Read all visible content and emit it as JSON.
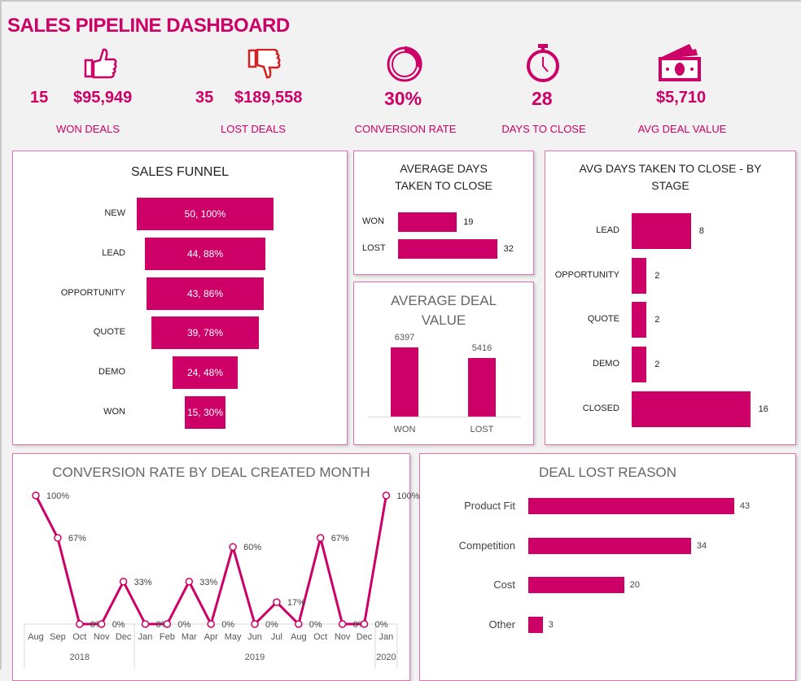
{
  "header": {
    "title": "SALES PIPELINE  DASHBOARD"
  },
  "colors": {
    "accent": "#cc0066",
    "lost_icon": "#d42020",
    "border": "#e272ad"
  },
  "kpis": {
    "won": {
      "count": "15",
      "value": "$95,949",
      "label": "WON DEALS",
      "icon": "thumbs-up-icon"
    },
    "lost": {
      "count": "35",
      "value": "$189,558",
      "label": "LOST DEALS",
      "icon": "thumbs-down-icon"
    },
    "conversion": {
      "value": "30%",
      "label": "CONVERSION RATE",
      "icon": "donut-ring-icon"
    },
    "days": {
      "value": "28",
      "label": "DAYS TO CLOSE",
      "icon": "stopwatch-icon"
    },
    "avg": {
      "value": "$5,710",
      "label": "AVG DEAL VALUE",
      "icon": "cash-icon"
    }
  },
  "chart_data": [
    {
      "id": "funnel",
      "type": "bar",
      "title": "SALES FUNNEL",
      "categories": [
        "NEW",
        "LEAD",
        "OPPORTUNITY",
        "QUOTE",
        "DEMO",
        "WON"
      ],
      "values": [
        50,
        44,
        43,
        39,
        24,
        15
      ],
      "percent": [
        100,
        88,
        86,
        78,
        48,
        30
      ],
      "data_labels": [
        "50, 100%",
        "44, 88%",
        "43, 86%",
        "39, 78%",
        "24, 48%",
        "15, 30%"
      ]
    },
    {
      "id": "avg_days",
      "type": "bar",
      "title": "AVERAGE DAYS TAKEN TO CLOSE",
      "categories": [
        "WON",
        "LOST"
      ],
      "values": [
        19,
        32
      ]
    },
    {
      "id": "avg_value",
      "type": "bar",
      "title": "AVERAGE DEAL VALUE",
      "categories": [
        "WON",
        "LOST"
      ],
      "values": [
        6397,
        5416
      ]
    },
    {
      "id": "by_stage",
      "type": "bar",
      "title": "AVG DAYS TAKEN TO CLOSE - BY STAGE",
      "categories": [
        "LEAD",
        "OPPORTUNITY",
        "QUOTE",
        "DEMO",
        "CLOSED"
      ],
      "values": [
        8,
        2,
        2,
        2,
        16
      ]
    },
    {
      "id": "conversion",
      "type": "line",
      "title": "CONVERSION RATE BY DEAL CREATED MONTH",
      "categories": [
        "Aug",
        "Sep",
        "Oct",
        "Nov",
        "Dec",
        "Jan",
        "Feb",
        "Mar",
        "Apr",
        "May",
        "Jun",
        "Jul",
        "Aug",
        "Oct",
        "Nov",
        "Dec",
        "Jan"
      ],
      "years": [
        {
          "label": "2018",
          "count": 5
        },
        {
          "label": "2019",
          "count": 11
        },
        {
          "label": "2020",
          "count": 1
        }
      ],
      "values": [
        100,
        67,
        0,
        0,
        33,
        0,
        0,
        33,
        0,
        60,
        0,
        17,
        0,
        67,
        0,
        0,
        100
      ],
      "ylim": [
        0,
        100
      ]
    },
    {
      "id": "lost_reason",
      "type": "bar",
      "title": "DEAL LOST REASON",
      "categories": [
        "Product Fit",
        "Competition",
        "Cost",
        "Other"
      ],
      "values": [
        43,
        34,
        20,
        3
      ]
    }
  ]
}
